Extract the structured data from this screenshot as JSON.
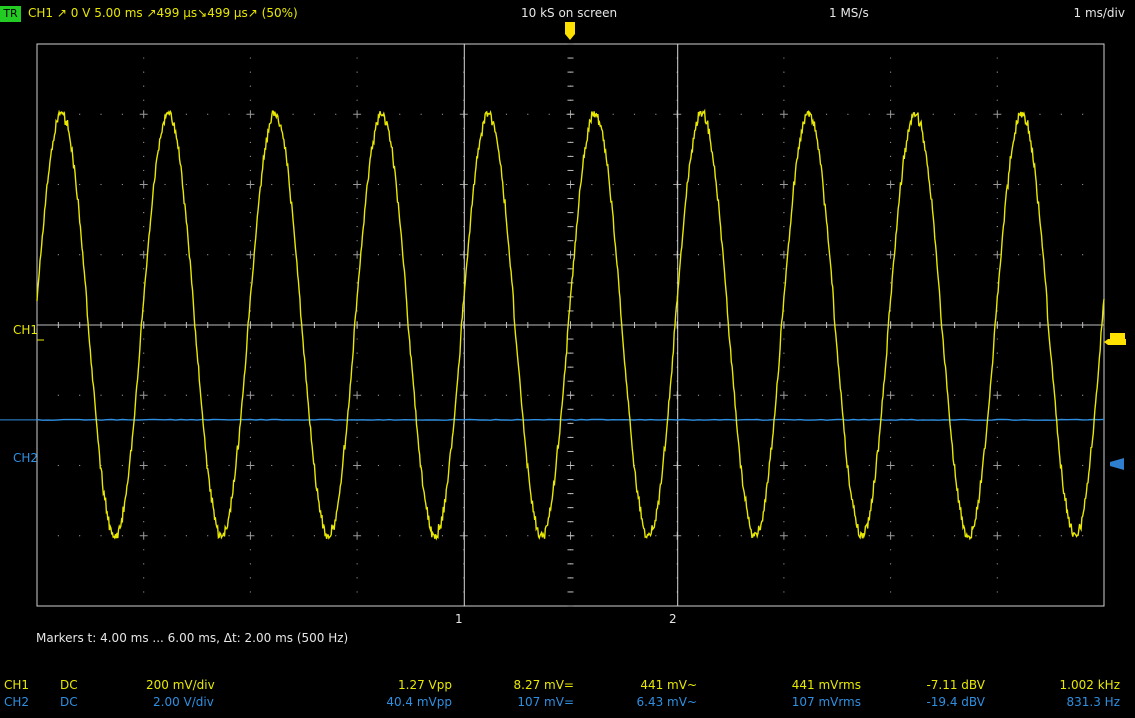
{
  "header": {
    "trigger_badge": "TR",
    "trigger_info": "CH1  ↗  0 V  5.00 ms  ↗499 µs↘499 µs↗ (50%)",
    "samples_on_screen": "10 kS on screen",
    "sample_rate": "1 MS/s",
    "timebase": "1 ms/div"
  },
  "graticule": {
    "ch1_marker_label": "CH1",
    "ch2_marker_label": "CH2",
    "cursor1_label": "1",
    "cursor2_label": "2"
  },
  "markers_readout": "Markers   t: 4.00 ms ... 6.00 ms,  Δt: 2.00 ms (500 Hz)",
  "channels": [
    {
      "name": "CH1",
      "coupling": "DC",
      "scale": "200 mV/div",
      "vpp": "1.27 Vpp",
      "vdc": "8.27 mV=",
      "vac": "441 mV~",
      "vrms": "441 mVrms",
      "dbv": "-7.11 dBV",
      "freq": "1.002 kHz"
    },
    {
      "name": "CH2",
      "coupling": "DC",
      "scale": "2.00 V/div",
      "vpp": "40.4 mVpp",
      "vdc": "107 mV=",
      "vac": "6.43 mV~",
      "vrms": "107 mVrms",
      "dbv": "-19.4 dBV",
      "freq": "831.3 Hz"
    }
  ],
  "colors": {
    "ch1": "#e8e800",
    "ch2": "#2f8fe0",
    "trigger_badge": "#22cc22",
    "grid": "#9a9a9a"
  },
  "waveforms": {
    "ch1_cycles_on_screen": 10,
    "ch1_amplitude_divisions": 3.0,
    "ch2_level_divisions": -1.35
  }
}
